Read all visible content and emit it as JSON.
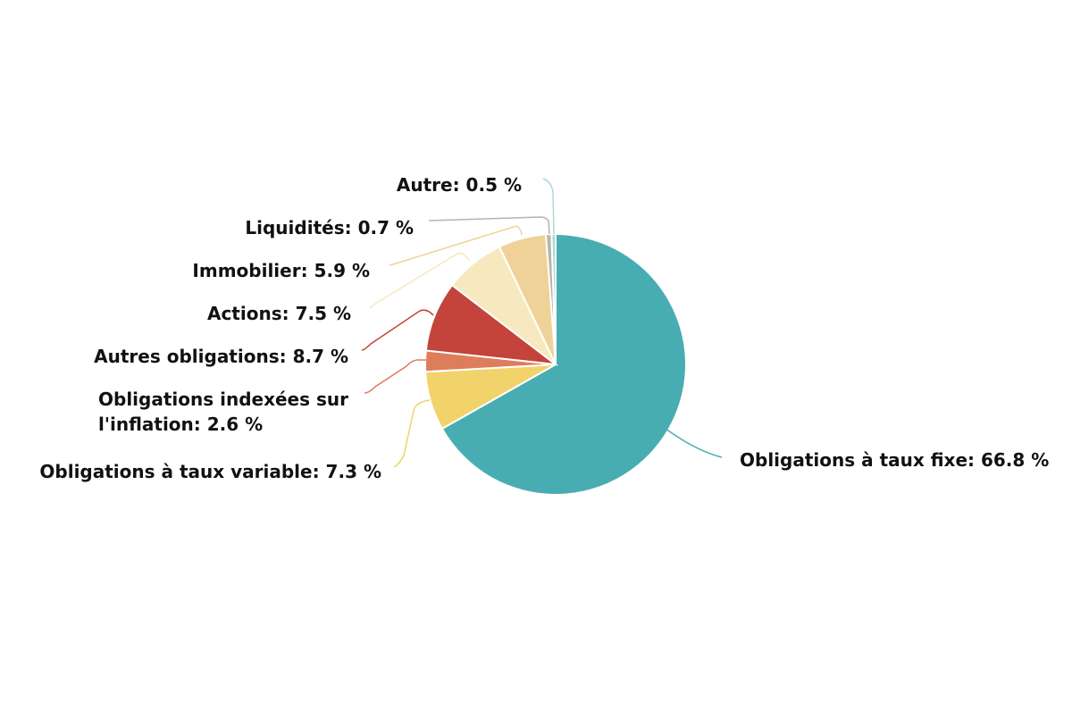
{
  "chart_data": {
    "type": "pie",
    "title": "",
    "slices": [
      {
        "label": "Obligations à taux fixe",
        "value": 66.8,
        "display": "Obligations à taux fixe: 66.8 %",
        "color": "#48ADB3"
      },
      {
        "label": "Obligations à taux variable",
        "value": 7.3,
        "display": "Obligations à taux variable: 7.3 %",
        "color": "#F2D26A"
      },
      {
        "label": "Obligations indexées sur l'inflation",
        "value": 2.6,
        "display": "Obligations indexées sur l'inflation: 2.6 %",
        "color": "#DE7D5C"
      },
      {
        "label": "Autres obligations",
        "value": 8.7,
        "display": "Autres obligations: 8.7 %",
        "color": "#C4433A"
      },
      {
        "label": "Actions",
        "value": 7.5,
        "display": "Actions: 7.5 %",
        "color": "#F6E9BF"
      },
      {
        "label": "Immobilier",
        "value": 5.9,
        "display": "Immobilier: 5.9 %",
        "color": "#EFD297"
      },
      {
        "label": "Liquidités",
        "value": 0.7,
        "display": "Liquidités: 0.7 %",
        "color": "#B7B5A7"
      },
      {
        "label": "Autre",
        "value": 0.5,
        "display": "Autre: 0.5 %",
        "color": "#A8D8DC"
      }
    ]
  }
}
